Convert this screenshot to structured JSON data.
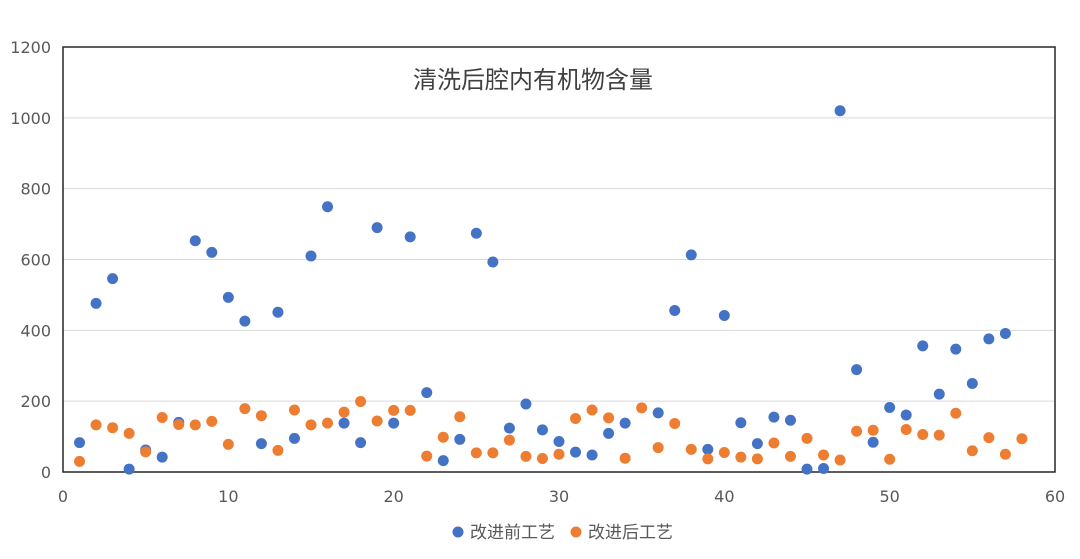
{
  "chart_data": {
    "type": "scatter",
    "title": "清洗后腔内有机物含量",
    "xlabel": "",
    "ylabel": "",
    "xlim": [
      0,
      60
    ],
    "ylim": [
      0,
      1200
    ],
    "xticks": [
      "0",
      "10",
      "20",
      "30",
      "40",
      "50",
      "60"
    ],
    "yticks": [
      "0",
      "200",
      "400",
      "600",
      "800",
      "1000",
      "1200"
    ],
    "grid": "horizontal",
    "legend_position": "bottom",
    "series": [
      {
        "name": "改进前工艺",
        "color": "#4472C4",
        "x": [
          1,
          2,
          3,
          4,
          5,
          6,
          7,
          8,
          9,
          10,
          11,
          12,
          13,
          14,
          15,
          16,
          17,
          18,
          19,
          20,
          21,
          22,
          23,
          24,
          25,
          26,
          27,
          28,
          29,
          30,
          31,
          32,
          33,
          34,
          36,
          37,
          38,
          39,
          40,
          41,
          42,
          43,
          44,
          45,
          46,
          47,
          48,
          49,
          50,
          51,
          52,
          53,
          54,
          55,
          56,
          57
        ],
        "y": [
          83,
          476,
          546,
          8,
          62,
          42,
          140,
          653,
          620,
          493,
          426,
          80,
          451,
          95,
          610,
          749,
          138,
          83,
          690,
          138,
          664,
          224,
          32,
          92,
          674,
          593,
          124,
          192,
          119,
          86,
          56,
          48,
          109,
          138,
          167,
          456,
          613,
          64,
          442,
          139,
          80,
          155,
          146,
          8,
          10,
          1020,
          289,
          84,
          182,
          161,
          356,
          220,
          347,
          250,
          376,
          391
        ]
      },
      {
        "name": "改进后工艺",
        "color": "#ED7D31",
        "x": [
          1,
          2,
          3,
          4,
          5,
          6,
          7,
          8,
          9,
          10,
          11,
          12,
          13,
          14,
          15,
          16,
          17,
          18,
          19,
          20,
          21,
          22,
          23,
          24,
          25,
          26,
          27,
          28,
          29,
          30,
          31,
          32,
          33,
          34,
          35,
          36,
          37,
          38,
          39,
          40,
          41,
          42,
          43,
          44,
          45,
          46,
          47,
          48,
          49,
          50,
          51,
          52,
          53,
          54,
          55,
          56,
          57,
          58
        ],
        "y": [
          30,
          133,
          125,
          109,
          57,
          154,
          134,
          133,
          143,
          78,
          179,
          159,
          61,
          175,
          133,
          138,
          169,
          199,
          144,
          174,
          174,
          45,
          98,
          156,
          54,
          54,
          90,
          44,
          38,
          50,
          151,
          175,
          153,
          39,
          181,
          69,
          137,
          64,
          37,
          55,
          42,
          37,
          82,
          44,
          95,
          48,
          34,
          115,
          118,
          36,
          120,
          106,
          104,
          166,
          60,
          97,
          50,
          94
        ]
      }
    ]
  }
}
